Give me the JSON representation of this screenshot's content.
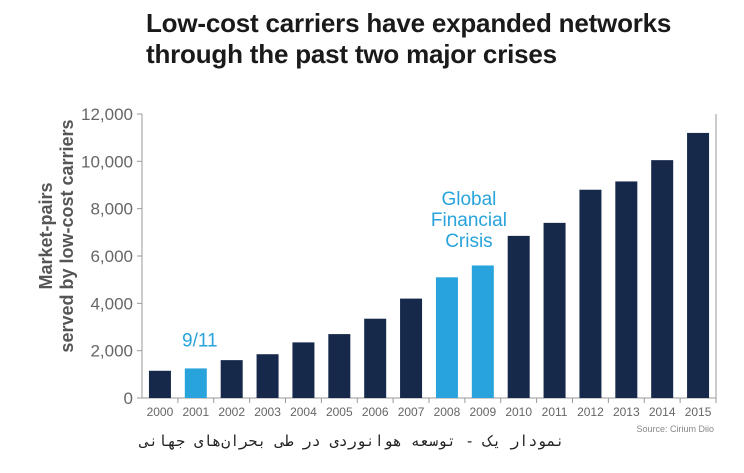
{
  "chart_data": {
    "type": "bar",
    "title": [
      "Low-cost carriers have expanded networks",
      "through the past two major crises"
    ],
    "ylabel": [
      "Market-pairs",
      "served by low-cost carriers"
    ],
    "xlabel": "",
    "categories": [
      "2000",
      "2001",
      "2002",
      "2003",
      "2004",
      "2005",
      "2006",
      "2007",
      "2008",
      "2009",
      "2010",
      "2011",
      "2012",
      "2013",
      "2014",
      "2015"
    ],
    "values": [
      1150,
      1250,
      1600,
      1850,
      2350,
      2700,
      3350,
      4200,
      5100,
      5600,
      6850,
      7400,
      8800,
      9150,
      10050,
      11200
    ],
    "highlight_years": [
      "2001",
      "2008",
      "2009"
    ],
    "ylim": [
      0,
      12000
    ],
    "yticks": [
      "0",
      "2,000",
      "4,000",
      "6,000",
      "8,000",
      "10,000",
      "12,000"
    ],
    "grid": false,
    "annotations": [
      {
        "text": [
          "9/11"
        ],
        "category": "2001"
      },
      {
        "text": [
          "Global",
          "Financial",
          "Crisis"
        ],
        "category": "2008"
      }
    ],
    "source": "Source: Cirium Diio",
    "colors": {
      "bar": "#16294a",
      "highlight": "#29a3dc",
      "axis": "#999999",
      "tick_text": "#666666"
    }
  },
  "caption": "نمودار یک - توسعه هوانوردی در طی بحران‌های جهانی"
}
